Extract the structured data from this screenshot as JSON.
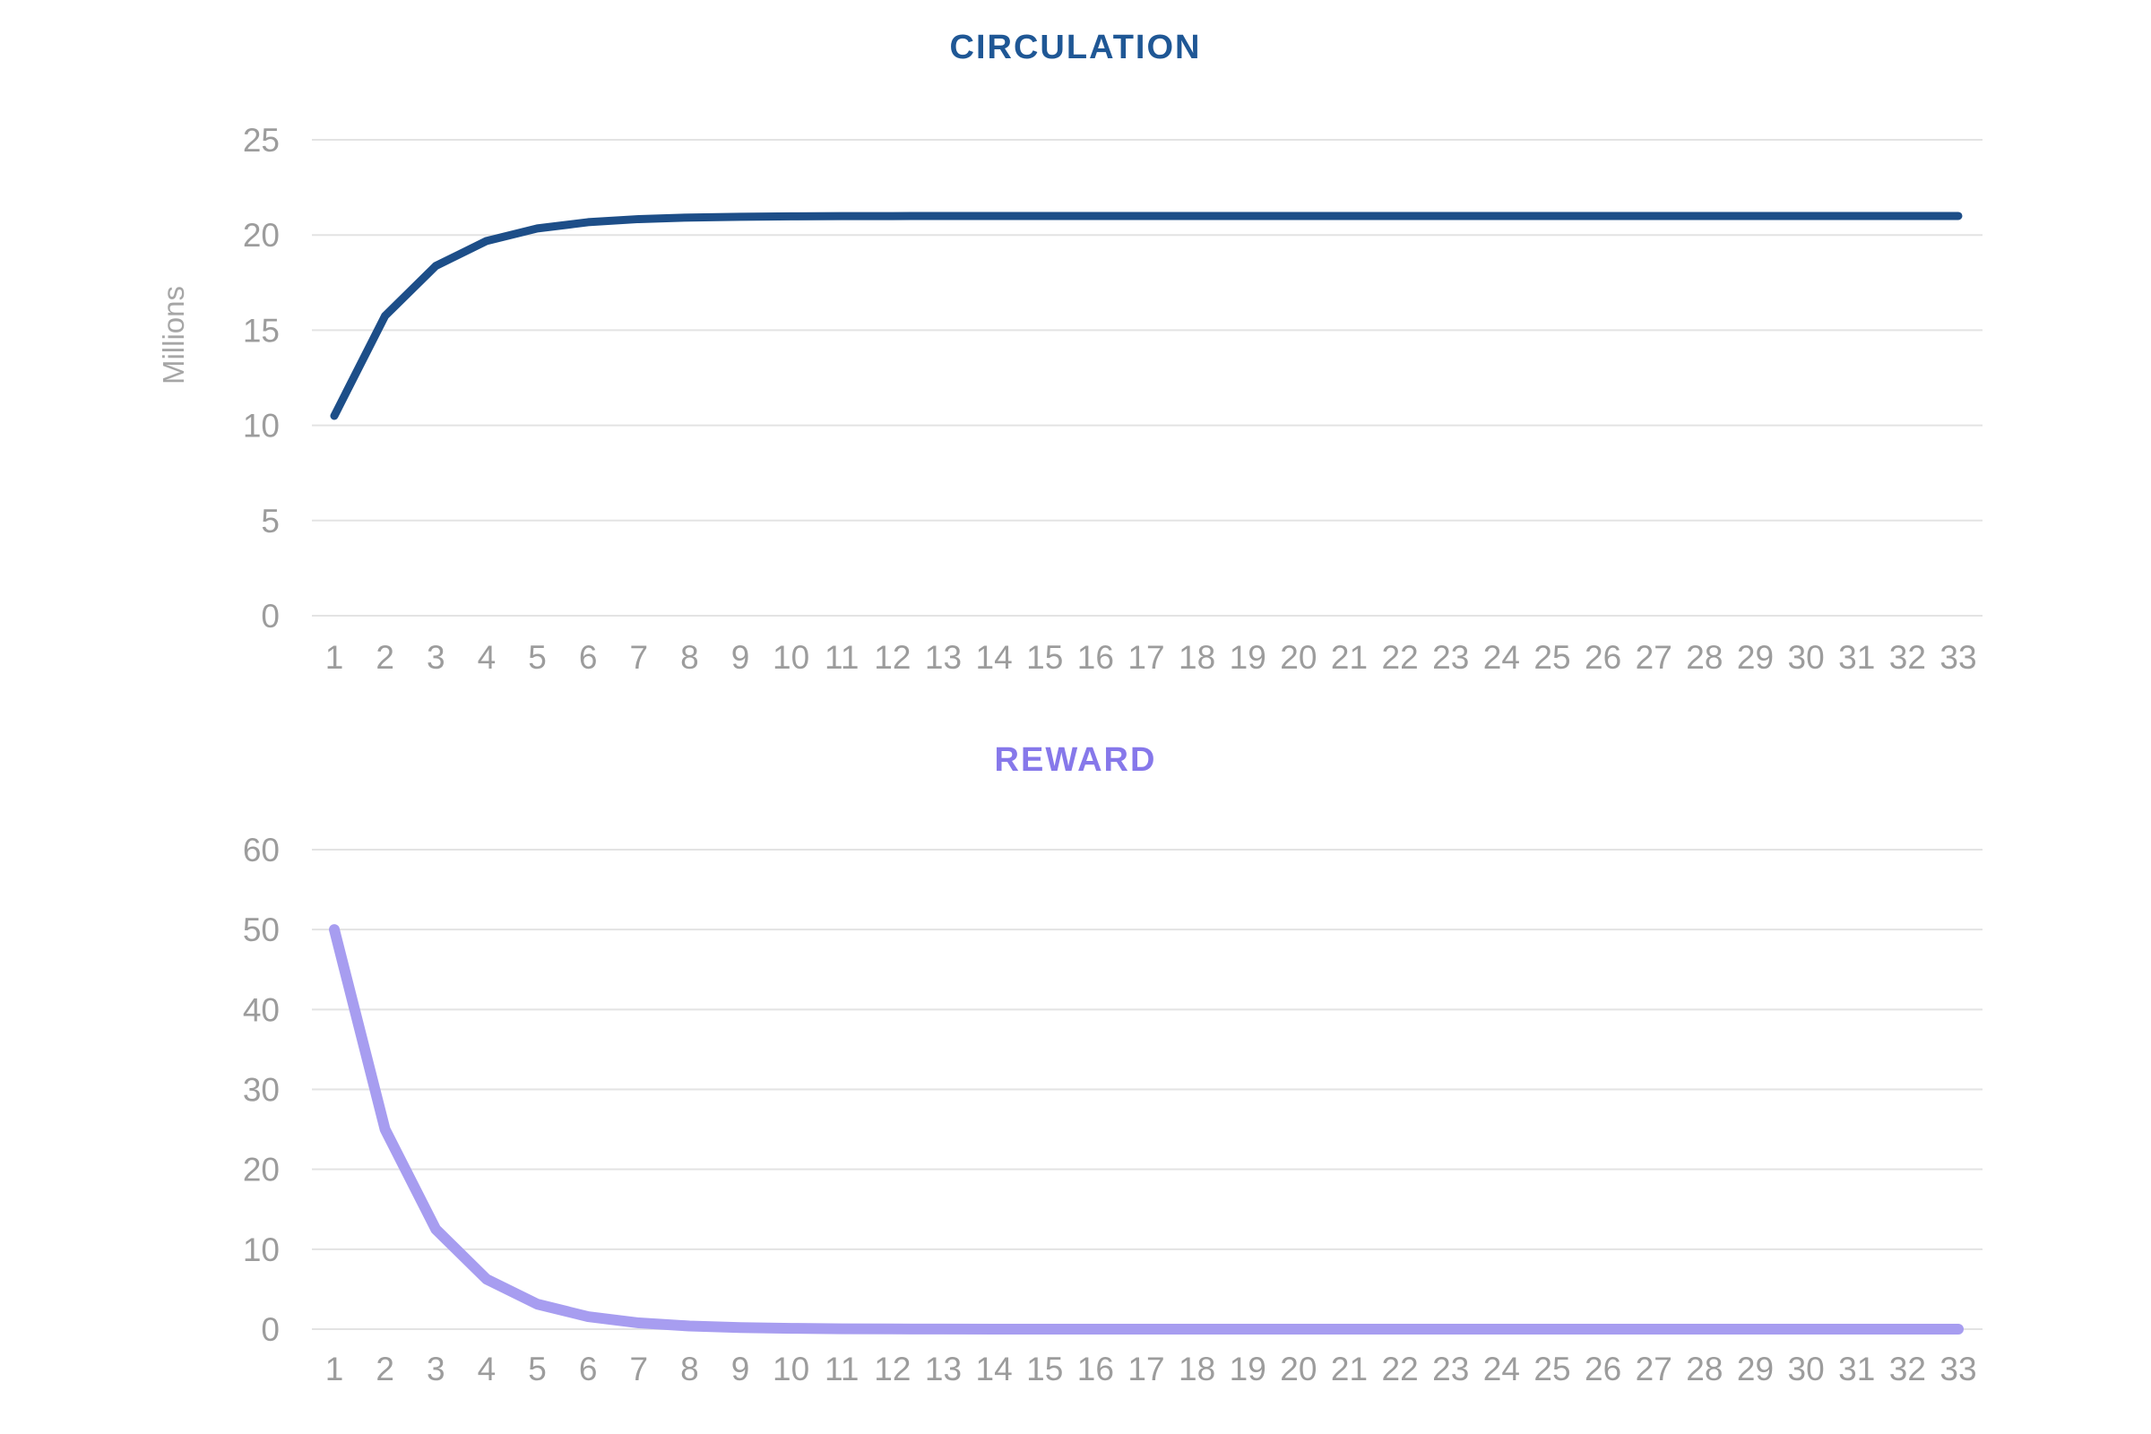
{
  "page": {
    "background": "#ffffff"
  },
  "chart_data": [
    {
      "type": "line",
      "title": "CIRCULATION",
      "xlabel": "",
      "ylabel": "Millions",
      "x": [
        1,
        2,
        3,
        4,
        5,
        6,
        7,
        8,
        9,
        10,
        11,
        12,
        13,
        14,
        15,
        16,
        17,
        18,
        19,
        20,
        21,
        22,
        23,
        24,
        25,
        26,
        27,
        28,
        29,
        30,
        31,
        32,
        33
      ],
      "yticks": [
        0,
        5,
        10,
        15,
        20,
        25
      ],
      "ylim": [
        0,
        25
      ],
      "grid": true,
      "legend": "none",
      "series": [
        {
          "name": "circulation",
          "values": [
            10.5,
            15.75,
            18.375,
            19.6875,
            20.3438,
            20.6719,
            20.8359,
            20.918,
            20.959,
            20.9795,
            20.9897,
            20.9949,
            20.9974,
            20.9987,
            20.9994,
            20.9997,
            20.9998,
            20.9999,
            20.9999,
            21,
            21,
            21,
            21,
            21,
            21,
            21,
            21,
            21,
            21,
            21,
            21,
            21,
            21
          ]
        }
      ],
      "colors": {
        "line": "#1d4e88",
        "title": "#1f5795",
        "axis_text": "#9c9c9c",
        "axis_unit_text": "#a6a6a6",
        "gridline": "#e3e3e3"
      }
    },
    {
      "type": "line",
      "title": "REWARD",
      "xlabel": "",
      "ylabel": "",
      "x": [
        1,
        2,
        3,
        4,
        5,
        6,
        7,
        8,
        9,
        10,
        11,
        12,
        13,
        14,
        15,
        16,
        17,
        18,
        19,
        20,
        21,
        22,
        23,
        24,
        25,
        26,
        27,
        28,
        29,
        30,
        31,
        32,
        33
      ],
      "yticks": [
        0,
        10,
        20,
        30,
        40,
        50,
        60
      ],
      "ylim": [
        0,
        60
      ],
      "grid": true,
      "legend": "none",
      "series": [
        {
          "name": "reward",
          "values": [
            50,
            25,
            12.5,
            6.25,
            3.125,
            1.5625,
            0.7813,
            0.3906,
            0.1953,
            0.0977,
            0.0488,
            0.0244,
            0.0122,
            0.0061,
            0.0031,
            0.0015,
            0.0008,
            0.0004,
            0.0002,
            0.0001,
            0.0001,
            0,
            0,
            0,
            0,
            0,
            0,
            0,
            0,
            0,
            0,
            0,
            0
          ]
        }
      ],
      "colors": {
        "line": "#a79df0",
        "title": "#8678ea",
        "axis_text": "#9c9c9c",
        "axis_unit_text": "#a6a6a6",
        "gridline": "#e3e3e3"
      }
    }
  ]
}
